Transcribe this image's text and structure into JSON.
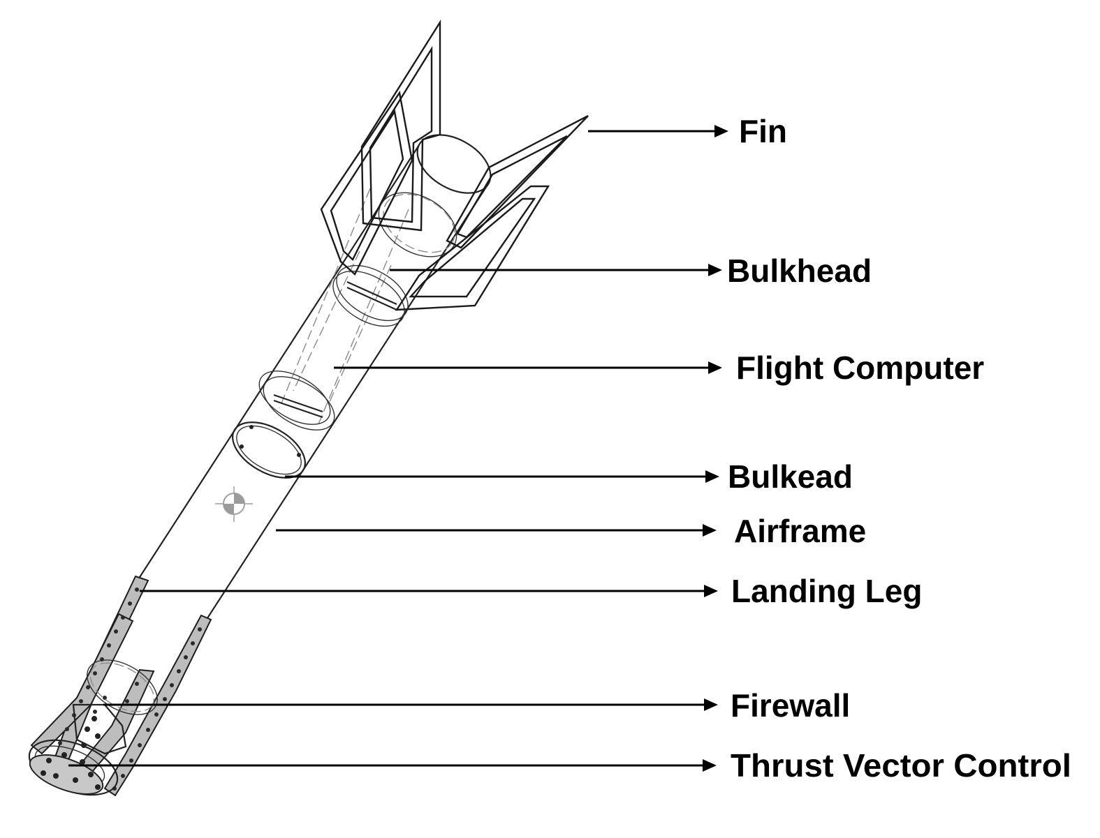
{
  "diagram": {
    "labels": [
      {
        "id": "fin",
        "text": "Fin"
      },
      {
        "id": "bulkhead-upper",
        "text": "Bulkhead"
      },
      {
        "id": "flight-computer",
        "text": "Flight Computer"
      },
      {
        "id": "bulkead-lower",
        "text": "Bulkead"
      },
      {
        "id": "airframe",
        "text": "Airframe"
      },
      {
        "id": "landing-leg",
        "text": "Landing Leg"
      },
      {
        "id": "firewall",
        "text": "Firewall"
      },
      {
        "id": "thrust-vector-control",
        "text": "Thrust Vector Control"
      }
    ],
    "colors": {
      "line": "#000000",
      "background": "#ffffff"
    }
  }
}
